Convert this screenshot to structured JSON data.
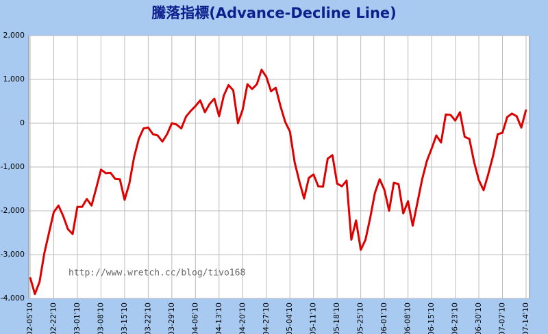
{
  "chart_data": {
    "type": "line",
    "title": "騰落指標(Advance-Decline Line)",
    "annotation": "http://www.wretch.cc/blog/tivo168",
    "categories": [
      "02-05'10",
      null,
      null,
      null,
      null,
      "02-22'10",
      null,
      null,
      null,
      null,
      "03-01'10",
      null,
      null,
      null,
      null,
      "03-08'10",
      null,
      null,
      null,
      null,
      "03-15'10",
      null,
      null,
      null,
      null,
      "03-22'10",
      null,
      null,
      null,
      null,
      "03-29'10",
      null,
      null,
      null,
      null,
      "04-06'10",
      null,
      null,
      null,
      null,
      "04-13'10",
      null,
      null,
      null,
      null,
      "04-20'10",
      null,
      null,
      null,
      null,
      "04-27'10",
      null,
      null,
      null,
      null,
      "05-04'10",
      null,
      null,
      null,
      null,
      "05-11'10",
      null,
      null,
      null,
      null,
      "05-18'10",
      null,
      null,
      null,
      null,
      "05-25'10",
      null,
      null,
      null,
      null,
      "06-01'10",
      null,
      null,
      null,
      null,
      "06-08'10",
      null,
      null,
      null,
      null,
      "06-15'10",
      null,
      null,
      null,
      null,
      "06-23'10",
      null,
      null,
      null,
      null,
      "06-30'10",
      null,
      null,
      null,
      null,
      "07-07'10",
      null,
      null,
      null,
      null,
      "07-14'10"
    ],
    "series": [
      {
        "color": "#dd0000",
        "values": [
          -3520,
          -3900,
          -3620,
          -2970,
          -2500,
          -2030,
          -1880,
          -2120,
          -2420,
          -2530,
          -1910,
          -1910,
          -1730,
          -1880,
          -1480,
          -1060,
          -1140,
          -1130,
          -1270,
          -1280,
          -1750,
          -1380,
          -780,
          -360,
          -120,
          -100,
          -250,
          -280,
          -420,
          -250,
          0,
          -30,
          -120,
          150,
          280,
          390,
          520,
          250,
          440,
          560,
          160,
          630,
          870,
          750,
          0,
          310,
          890,
          780,
          890,
          1220,
          1060,
          730,
          810,
          390,
          30,
          -190,
          -890,
          -1330,
          -1720,
          -1250,
          -1170,
          -1440,
          -1450,
          -810,
          -730,
          -1380,
          -1440,
          -1310,
          -2660,
          -2220,
          -2890,
          -2660,
          -2160,
          -1590,
          -1280,
          -1520,
          -2000,
          -1360,
          -1390,
          -2060,
          -1780,
          -2340,
          -1810,
          -1280,
          -860,
          -580,
          -280,
          -440,
          200,
          190,
          60,
          250,
          -310,
          -360,
          -890,
          -1300,
          -1530,
          -1160,
          -750,
          -250,
          -220,
          140,
          220,
          160,
          -100,
          310
        ]
      }
    ],
    "ylim": [
      -4000,
      2000
    ],
    "yticks": [
      {
        "value": -4000,
        "label": "-4,000"
      },
      {
        "value": -3000,
        "label": "-3,000"
      },
      {
        "value": -2000,
        "label": "-2,000"
      },
      {
        "value": -1000,
        "label": "-1,000"
      },
      0,
      {
        "value": 1000,
        "label": "1,000"
      },
      {
        "value": 2000,
        "label": "2,000"
      }
    ],
    "grid": true
  }
}
